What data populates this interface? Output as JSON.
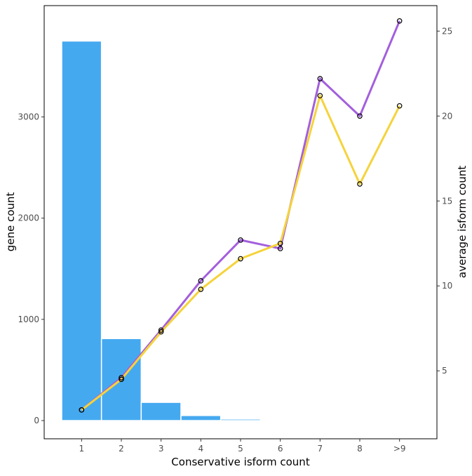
{
  "chart_data": {
    "type": "bar",
    "categories": [
      "1",
      "2",
      "3",
      "4",
      "5",
      "6",
      "7",
      "8",
      ">9"
    ],
    "bars": {
      "values": [
        3750,
        810,
        180,
        50,
        15,
        4,
        2,
        2,
        2
      ],
      "color": "#45A9F0"
    },
    "lines": [
      {
        "values": [
          2.7,
          4.6,
          7.4,
          10.3,
          12.7,
          12.2,
          22.2,
          20.0,
          25.6
        ],
        "color": "#A35FDD"
      },
      {
        "values": [
          2.7,
          4.5,
          7.3,
          9.8,
          11.6,
          12.5,
          21.2,
          16.0,
          20.6
        ],
        "color": "#F5D33B"
      }
    ],
    "xlabel": "Conservative isform count",
    "ylabel": "gene count",
    "y2label": "average isform count",
    "ylim": [
      -180,
      4100
    ],
    "y2lim": [
      1.0,
      26.5
    ],
    "yticks": [
      0,
      1000,
      2000,
      3000
    ],
    "y2ticks": [
      5,
      10,
      15,
      20,
      25
    ],
    "grid": false
  }
}
